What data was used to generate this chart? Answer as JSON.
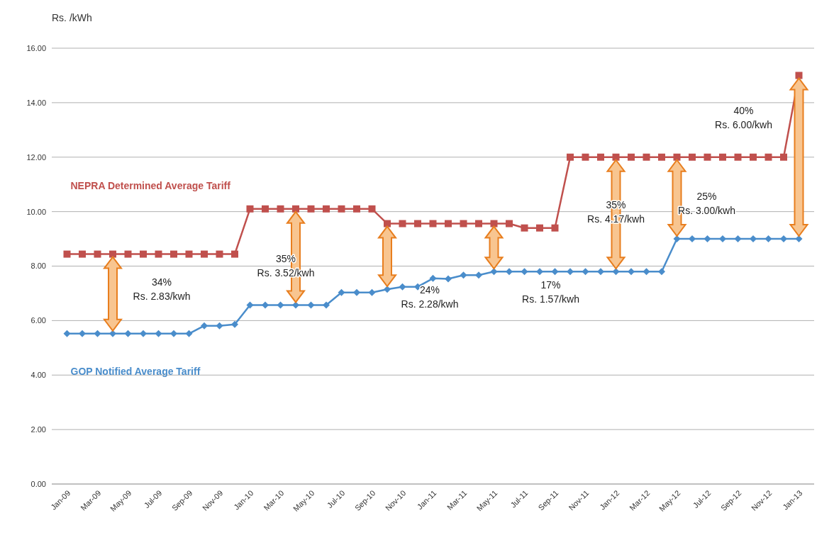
{
  "chart_data": {
    "type": "line",
    "ylabel": "Rs. /kWh",
    "x": [
      "2009-01",
      "2009-02",
      "2009-03",
      "2009-04",
      "2009-05",
      "2009-06",
      "2009-07",
      "2009-08",
      "2009-09",
      "2009-10",
      "2009-11",
      "2009-12",
      "2010-01",
      "2010-02",
      "2010-03",
      "2010-04",
      "2010-05",
      "2010-06",
      "2010-07",
      "2010-08",
      "2010-09",
      "2010-10",
      "2010-11",
      "2010-12",
      "2011-01",
      "2011-02",
      "2011-03",
      "2011-04",
      "2011-05",
      "2011-06",
      "2011-07",
      "2011-08",
      "2011-09",
      "2011-10",
      "2011-11",
      "2011-12",
      "2012-01",
      "2012-02",
      "2012-03",
      "2012-04",
      "2012-05",
      "2012-06",
      "2012-07",
      "2012-08",
      "2012-09",
      "2012-10",
      "2012-11",
      "2012-12",
      "2013-01"
    ],
    "series": [
      {
        "name": "NEPRA Determined Average Tariff",
        "color": "#c0504d",
        "marker": "square",
        "values": [
          8.44,
          8.44,
          8.44,
          8.44,
          8.44,
          8.44,
          8.44,
          8.44,
          8.44,
          8.44,
          8.44,
          8.44,
          10.1,
          10.1,
          10.1,
          10.1,
          10.1,
          10.1,
          10.1,
          10.1,
          10.1,
          9.56,
          9.56,
          9.56,
          9.56,
          9.56,
          9.56,
          9.56,
          9.56,
          9.56,
          9.4,
          9.4,
          9.4,
          12,
          12,
          12,
          12,
          12,
          12,
          12,
          12,
          12,
          12,
          12,
          12,
          12,
          12,
          12,
          15
        ]
      },
      {
        "name": "GOP Notified Average Tariff",
        "color": "#4a8dcb",
        "marker": "diamond",
        "values": [
          5.52,
          5.52,
          5.52,
          5.52,
          5.52,
          5.52,
          5.52,
          5.52,
          5.52,
          5.81,
          5.81,
          5.86,
          6.57,
          6.57,
          6.57,
          6.57,
          6.57,
          6.57,
          7.03,
          7.03,
          7.03,
          7.15,
          7.24,
          7.24,
          7.55,
          7.53,
          7.67,
          7.67,
          7.8,
          7.8,
          7.8,
          7.8,
          7.8,
          7.8,
          7.8,
          7.8,
          7.8,
          7.8,
          7.8,
          7.8,
          9.0,
          9.0,
          9.0,
          9.0,
          9.0,
          9.0,
          9.0,
          9.0,
          9.0
        ]
      }
    ],
    "xlim": [
      "2008-12",
      "2013-02"
    ],
    "xticks": [
      {
        "value": "2009-01",
        "label": "Jan-09"
      },
      {
        "value": "2009-03",
        "label": "Mar-09"
      },
      {
        "value": "2009-05",
        "label": "May-09"
      },
      {
        "value": "2009-07",
        "label": "Jul-09"
      },
      {
        "value": "2009-09",
        "label": "Sep-09"
      },
      {
        "value": "2009-11",
        "label": "Nov-09"
      },
      {
        "value": "2010-01",
        "label": "Jan-10"
      },
      {
        "value": "2010-03",
        "label": "Mar-10"
      },
      {
        "value": "2010-05",
        "label": "May-10"
      },
      {
        "value": "2010-07",
        "label": "Jul-10"
      },
      {
        "value": "2010-09",
        "label": "Sep-10"
      },
      {
        "value": "2010-11",
        "label": "Nov-10"
      },
      {
        "value": "2011-01",
        "label": "Jan-11"
      },
      {
        "value": "2011-03",
        "label": "Mar-11"
      },
      {
        "value": "2011-05",
        "label": "May-11"
      },
      {
        "value": "2011-07",
        "label": "Jul-11"
      },
      {
        "value": "2011-09",
        "label": "Sep-11"
      },
      {
        "value": "2011-11",
        "label": "Nov-11"
      },
      {
        "value": "2012-01",
        "label": "Jan-12"
      },
      {
        "value": "2012-03",
        "label": "Mar-12"
      },
      {
        "value": "2012-05",
        "label": "May-12"
      },
      {
        "value": "2012-07",
        "label": "Jul-12"
      },
      {
        "value": "2012-09",
        "label": "Sep-12"
      },
      {
        "value": "2012-11",
        "label": "Nov-12"
      },
      {
        "value": "2013-01",
        "label": "Jan-13"
      }
    ],
    "ylim": [
      0,
      16
    ],
    "yticks": [
      {
        "value": 0,
        "label": "0.00"
      },
      {
        "value": 2,
        "label": "2.00"
      },
      {
        "value": 4,
        "label": "4.00"
      },
      {
        "value": 6,
        "label": "6.00"
      },
      {
        "value": 8,
        "label": "8.00"
      },
      {
        "value": 10,
        "label": "10.00"
      },
      {
        "value": 12,
        "label": "12.00"
      },
      {
        "value": 14,
        "label": "14.00"
      },
      {
        "value": 16,
        "label": "16.00"
      }
    ],
    "grid": "y",
    "legend": false,
    "line_style": "solid",
    "annotations": [
      "34%\nRs. 2.83/kwh",
      "35%\nRs. 3.52/kwh",
      "24%\nRs. 2.28/kwh",
      "17%\nRs. 1.57/kwh",
      "35%\nRs. 4.17/kwh",
      "25%\nRs. 3.00/kwh",
      "40%\nRs. 6.00/kwh"
    ]
  }
}
